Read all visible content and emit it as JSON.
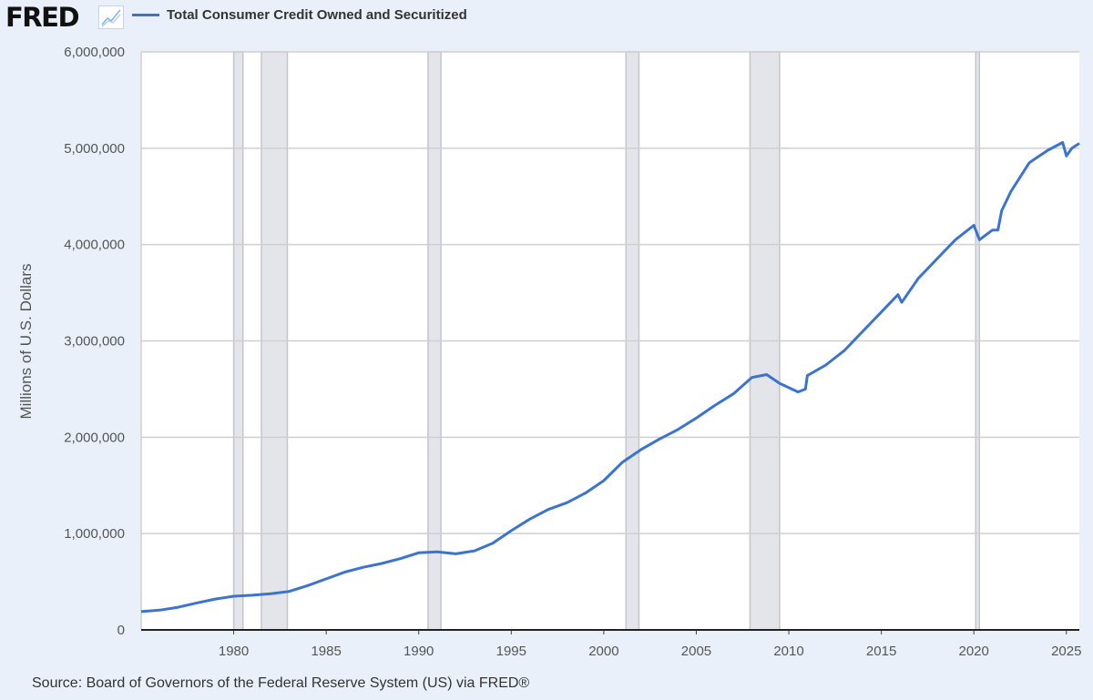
{
  "logo": "FRED",
  "chart_data": {
    "type": "line",
    "title": "",
    "legend": "Total Consumer Credit Owned and Securitized",
    "ylabel": "Millions of U.S. Dollars",
    "xlabel": "",
    "source": "Source: Board of Governors of the Federal Reserve System (US) via FRED®",
    "xlim": [
      1975,
      2025.7
    ],
    "ylim": [
      0,
      6000000
    ],
    "xticks": [
      1980,
      1985,
      1990,
      1995,
      2000,
      2005,
      2010,
      2015,
      2020,
      2025
    ],
    "yticks": [
      0,
      1000000,
      2000000,
      3000000,
      4000000,
      5000000,
      6000000
    ],
    "ytick_labels": [
      "0",
      "1,000,000",
      "2,000,000",
      "3,000,000",
      "4,000,000",
      "5,000,000",
      "6,000,000"
    ],
    "grid": true,
    "legend_position": "top",
    "line_color": "#3b74d0",
    "recession_color": "#e3e5ea",
    "recessions": [
      [
        1980.0,
        1980.5
      ],
      [
        1981.5,
        1982.9
      ],
      [
        1990.5,
        1991.2
      ],
      [
        2001.2,
        2001.9
      ],
      [
        2007.9,
        2009.5
      ],
      [
        2020.1,
        2020.3
      ]
    ],
    "series": [
      {
        "name": "Total Consumer Credit Owned and Securitized",
        "x": [
          1975,
          1976,
          1977,
          1978,
          1979,
          1980,
          1981,
          1982,
          1983,
          1984,
          1985,
          1986,
          1987,
          1988,
          1989,
          1990,
          1991,
          1992,
          1993,
          1994,
          1995,
          1996,
          1997,
          1998,
          1999,
          2000,
          2001,
          2002,
          2003,
          2004,
          2005,
          2006,
          2007,
          2008,
          2008.8,
          2009.5,
          2010.5,
          2010.9,
          2011,
          2012,
          2013,
          2014,
          2015,
          2015.9,
          2016.1,
          2017,
          2018,
          2019,
          2020.0,
          2020.3,
          2021,
          2021.3,
          2021.5,
          2022,
          2023,
          2024,
          2024.8,
          2025.0,
          2025.3,
          2025.7
        ],
        "y": [
          190000,
          205000,
          235000,
          280000,
          320000,
          350000,
          360000,
          375000,
          400000,
          460000,
          530000,
          600000,
          650000,
          690000,
          740000,
          800000,
          810000,
          790000,
          820000,
          900000,
          1030000,
          1150000,
          1250000,
          1320000,
          1420000,
          1550000,
          1740000,
          1870000,
          1980000,
          2080000,
          2200000,
          2330000,
          2450000,
          2620000,
          2650000,
          2560000,
          2470000,
          2500000,
          2640000,
          2750000,
          2900000,
          3100000,
          3300000,
          3480000,
          3400000,
          3650000,
          3850000,
          4050000,
          4200000,
          4050000,
          4150000,
          4150000,
          4350000,
          4550000,
          4850000,
          4980000,
          5060000,
          4920000,
          5000000,
          5050000
        ]
      }
    ]
  }
}
